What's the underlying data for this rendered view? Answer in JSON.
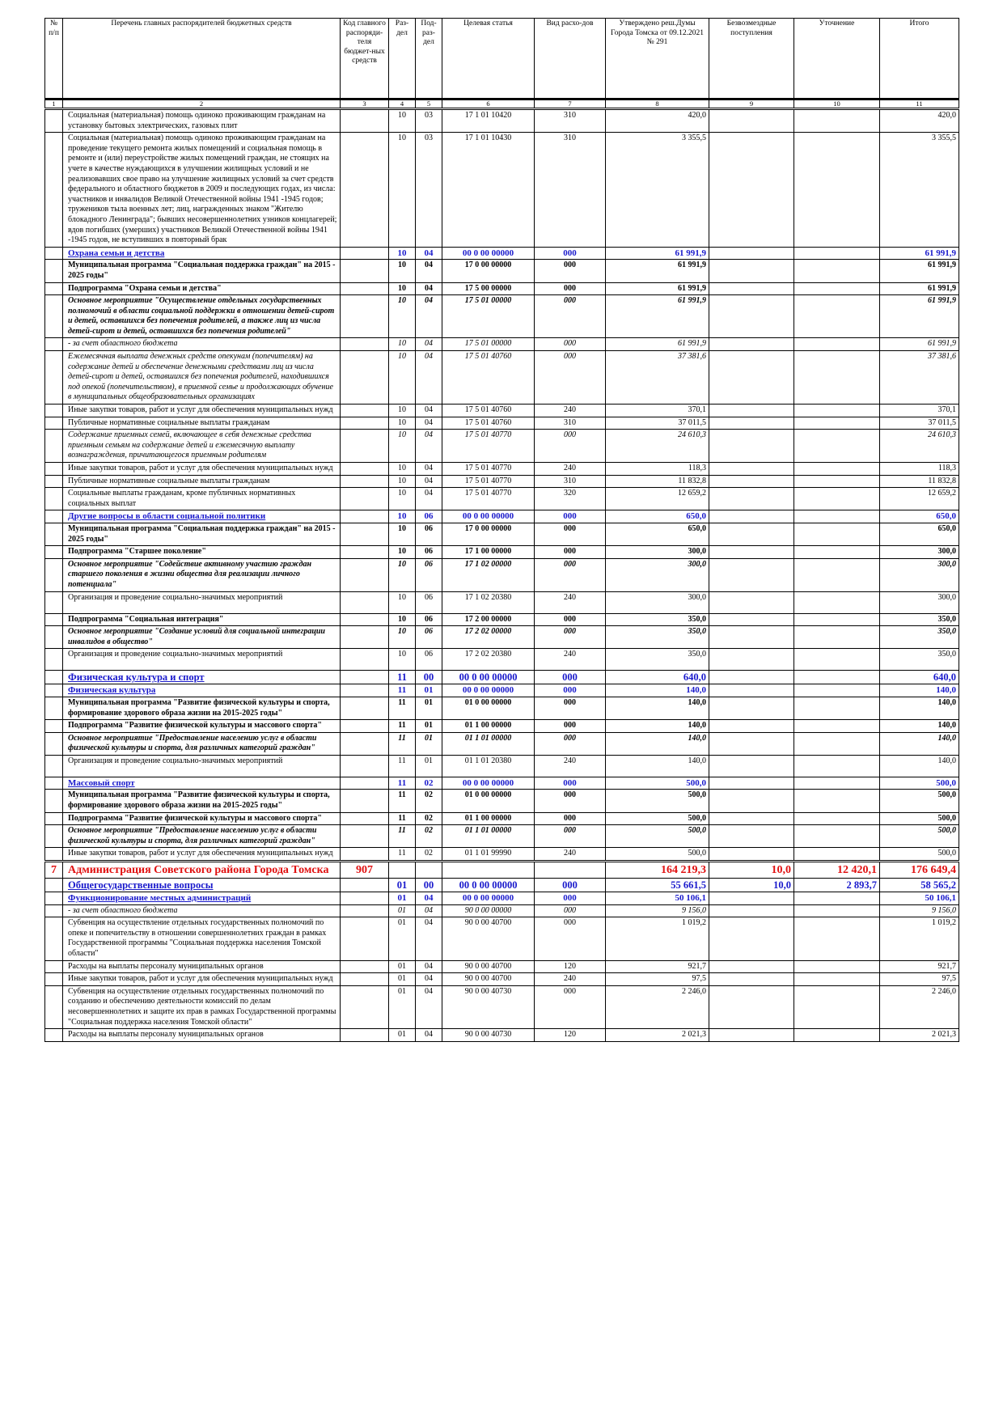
{
  "header": {
    "columns": [
      "№ п/п",
      "Перечень главных распорядителей бюджетных средств",
      "Код главного распоряди-теля бюджет-ных средств",
      "Раз-дел",
      "Под-раз-дел",
      "Целевая статья",
      "Вид расхо-дов",
      "Утверждено реш.Думы Города Томска от 09.12.2021 № 291",
      "Безвозмездные поступления",
      "Уточнение",
      "Итого"
    ],
    "numbers": [
      "1",
      "2",
      "3",
      "4",
      "5",
      "6",
      "7",
      "8",
      "9",
      "10",
      "11"
    ]
  },
  "rows": [
    {
      "style": "normal",
      "cells": [
        null,
        "Социальная (материальная) помощь одиноко проживающим гражданам на установку бытовых электрических, газовых плит",
        null,
        "10",
        "03",
        "17 1 01 10420",
        "310",
        "420,0",
        null,
        null,
        "420,0"
      ]
    },
    {
      "style": "normal",
      "cells": [
        null,
        "Социальная (материальная) помощь одиноко проживающим гражданам на проведение текущего ремонта жилых помещений и социальная помощь в ремонте и (или) переустройстве жилых помещений граждан, не стоящих на учете в качестве нуждающихся в улучшении жилищных условий и не реализовавших свое право на улучшение жилищных условий за счет средств федерального и областного бюджетов в 2009 и последующих годах, из числа: участников и инвалидов Великой Отечественной войны 1941 -1945 годов; тружеников тыла военных лет; лиц, награжденных знаком \"Жителю блокадного Ленинграда\"; бывших несовершеннолетних узников концлагерей; вдов погибших (умерших) участников Великой Отечественной войны 1941 -1945 годов, не вступивших в повторный брак",
        null,
        "10",
        "03",
        "17 1 01 10430",
        "310",
        "3 355,5",
        null,
        null,
        "3 355,5"
      ]
    },
    {
      "style": "section",
      "cells": [
        null,
        "Охрана семьи и детства",
        null,
        "10",
        "04",
        "00 0 00 00000",
        "000",
        "61 991,9",
        null,
        null,
        "61 991,9"
      ]
    },
    {
      "style": "bold",
      "cells": [
        null,
        "Муниципальная программа \"Социальная поддержка граждан\" на 2015 - 2025 годы\"",
        null,
        "10",
        "04",
        "17 0 00 00000",
        "000",
        "61 991,9",
        null,
        null,
        "61 991,9"
      ]
    },
    {
      "style": "bold",
      "cells": [
        null,
        "Подпрограмма \"Охрана семьи и детства\"",
        null,
        "10",
        "04",
        "17 5 00 00000",
        "000",
        "61 991,9",
        null,
        null,
        "61 991,9"
      ]
    },
    {
      "style": "bold-italic",
      "cells": [
        null,
        "Основное мероприятие \"Осуществление отдельных государственных полномочий в области социальной поддержки в отношении детей-сирот и детей, оставшихся без попечения родителей, а также лиц из числа детей-сирот и детей, оставшихся без попечения родителей\"",
        null,
        "10",
        "04",
        "17 5 01 00000",
        "000",
        "61 991,9",
        null,
        null,
        "61 991,9"
      ]
    },
    {
      "style": "italic",
      "cells": [
        null,
        "- за счет областного бюджета",
        null,
        "10",
        "04",
        "17 5 01 00000",
        "000",
        "61 991,9",
        null,
        null,
        "61 991,9"
      ]
    },
    {
      "style": "italic",
      "cells": [
        null,
        "Ежемесячная выплата денежных средств опекунам (попечителям) на содержание детей и обеспечение денежными средствами лиц из числа детей-сирот и детей, оставшихся без попечения родителей, находившихся под опекой (попечительством), в приемной семье и продолжающих обучение в муниципальных общеобразовательных организациях",
        null,
        "10",
        "04",
        "17 5 01 40760",
        "000",
        "37 381,6",
        null,
        null,
        "37 381,6"
      ]
    },
    {
      "style": "normal",
      "cells": [
        null,
        "Иные закупки товаров, работ и услуг для обеспечения муниципальных нужд",
        null,
        "10",
        "04",
        "17 5 01 40760",
        "240",
        "370,1",
        null,
        null,
        "370,1"
      ]
    },
    {
      "style": "normal",
      "cells": [
        null,
        "Публичные нормативные социальные выплаты гражданам",
        null,
        "10",
        "04",
        "17 5 01 40760",
        "310",
        "37 011,5",
        null,
        null,
        "37 011,5"
      ]
    },
    {
      "style": "italic",
      "cells": [
        null,
        "Содержание приемных семей, включающее в себя денежные средства приемным семьям на содержание детей и ежемесячную выплату вознаграждения, причитающегося приемным родителям",
        null,
        "10",
        "04",
        "17 5 01 40770",
        "000",
        "24 610,3",
        null,
        null,
        "24 610,3"
      ]
    },
    {
      "style": "normal",
      "cells": [
        null,
        "Иные закупки товаров, работ и услуг для обеспечения муниципальных нужд",
        null,
        "10",
        "04",
        "17 5 01 40770",
        "240",
        "118,3",
        null,
        null,
        "118,3"
      ]
    },
    {
      "style": "normal",
      "cells": [
        null,
        "Публичные нормативные социальные выплаты гражданам",
        null,
        "10",
        "04",
        "17 5 01 40770",
        "310",
        "11 832,8",
        null,
        null,
        "11 832,8"
      ]
    },
    {
      "style": "normal",
      "cells": [
        null,
        "Социальные выплаты гражданам, кроме публичных нормативных социальных выплат",
        null,
        "10",
        "04",
        "17 5 01 40770",
        "320",
        "12 659,2",
        null,
        null,
        "12 659,2"
      ]
    },
    {
      "style": "section",
      "cells": [
        null,
        "Другие вопросы в области социальной политики",
        null,
        "10",
        "06",
        "00 0 00 00000",
        "000",
        "650,0",
        null,
        null,
        "650,0"
      ]
    },
    {
      "style": "bold",
      "cells": [
        null,
        "Муниципальная программа \"Социальная поддержка граждан\" на 2015 - 2025 годы\"",
        null,
        "10",
        "06",
        "17 0 00 00000",
        "000",
        "650,0",
        null,
        null,
        "650,0"
      ]
    },
    {
      "style": "bold",
      "cells": [
        null,
        "Подпрограмма \"Старшее поколение\"",
        null,
        "10",
        "06",
        "17 1 00 00000",
        "000",
        "300,0",
        null,
        null,
        "300,0"
      ]
    },
    {
      "style": "bold-italic",
      "cells": [
        null,
        "Основное мероприятие \"Содействие активному участию граждан старшего поколения в жизни общества для реализации личного потенциала\"",
        null,
        "10",
        "06",
        "17 1 02 00000",
        "000",
        "300,0",
        null,
        null,
        "300,0"
      ]
    },
    {
      "style": "normal",
      "cells": [
        null,
        "Организация и проведение социально-значимых мероприятий",
        null,
        "10",
        "06",
        "17 1 02 20380",
        "240",
        "300,0",
        null,
        null,
        "300,0"
      ]
    },
    {
      "style": "bold",
      "cells": [
        null,
        "Подпрограмма \"Социальная интеграция\"",
        null,
        "10",
        "06",
        "17 2 00 00000",
        "000",
        "350,0",
        null,
        null,
        "350,0"
      ]
    },
    {
      "style": "bold-italic",
      "cells": [
        null,
        "Основное мероприятие \"Создание условий для социальной интеграции инвалидов в общество\"",
        null,
        "10",
        "06",
        "17 2 02 00000",
        "000",
        "350,0",
        null,
        null,
        "350,0"
      ]
    },
    {
      "style": "normal",
      "cells": [
        null,
        "Организация и проведение социально-значимых мероприятий",
        null,
        "10",
        "06",
        "17 2 02 20380",
        "240",
        "350,0",
        null,
        null,
        "350,0"
      ]
    },
    {
      "style": "section-large",
      "cells": [
        null,
        "Физическая культура и спорт",
        null,
        "11",
        "00",
        "00 0 00 00000",
        "000",
        "640,0",
        null,
        null,
        "640,0"
      ]
    },
    {
      "style": "section",
      "cells": [
        null,
        "Физическая культура",
        null,
        "11",
        "01",
        "00 0 00 00000",
        "000",
        "140,0",
        null,
        null,
        "140,0"
      ]
    },
    {
      "style": "bold",
      "cells": [
        null,
        "Муниципальная программа \"Развитие физической культуры и спорта, формирование здорового образа жизни на 2015-2025 годы\"",
        null,
        "11",
        "01",
        "01 0 00 00000",
        "000",
        "140,0",
        null,
        null,
        "140,0"
      ]
    },
    {
      "style": "bold",
      "cells": [
        null,
        "Подпрограмма \"Развитие физической культуры и массового спорта\"",
        null,
        "11",
        "01",
        "01 1 00 00000",
        "000",
        "140,0",
        null,
        null,
        "140,0"
      ]
    },
    {
      "style": "bold-italic",
      "cells": [
        null,
        "Основное мероприятие \"Предоставление населению услуг в области физической культуры и спорта, для различных категорий граждан\"",
        null,
        "11",
        "01",
        "01 1 01 00000",
        "000",
        "140,0",
        null,
        null,
        "140,0"
      ]
    },
    {
      "style": "normal",
      "cells": [
        null,
        "Организация и проведение социально-значимых мероприятий",
        null,
        "11",
        "01",
        "01 1 01 20380",
        "240",
        "140,0",
        null,
        null,
        "140,0"
      ]
    },
    {
      "style": "section",
      "cells": [
        null,
        "Массовый спорт",
        null,
        "11",
        "02",
        "00 0 00 00000",
        "000",
        "500,0",
        null,
        null,
        "500,0"
      ]
    },
    {
      "style": "bold",
      "cells": [
        null,
        "Муниципальная программа \"Развитие физической культуры и спорта, формирование здорового образа жизни на 2015-2025 годы\"",
        null,
        "11",
        "02",
        "01 0 00 00000",
        "000",
        "500,0",
        null,
        null,
        "500,0"
      ]
    },
    {
      "style": "bold",
      "cells": [
        null,
        "Подпрограмма \"Развитие физической культуры и массового спорта\"",
        null,
        "11",
        "02",
        "01 1 00 00000",
        "000",
        "500,0",
        null,
        null,
        "500,0"
      ]
    },
    {
      "style": "bold-italic",
      "cells": [
        null,
        "Основное мероприятие \"Предоставление населению услуг в области физической культуры и спорта, для различных категорий граждан\"",
        null,
        "11",
        "02",
        "01 1 01 00000",
        "000",
        "500,0",
        null,
        null,
        "500,0"
      ]
    },
    {
      "style": "normal",
      "cells": [
        null,
        "Иные закупки товаров, работ и услуг для обеспечения муниципальных нужд",
        null,
        "11",
        "02",
        "01 1 01 99990",
        "240",
        "500,0",
        null,
        null,
        "500,0"
      ]
    },
    {
      "style": "main",
      "cells": [
        "7",
        "Администрация Советского района Города Томска",
        "907",
        null,
        null,
        null,
        null,
        "164 219,3",
        "10,0",
        "12 420,1",
        "176 649,4"
      ]
    },
    {
      "style": "section-large",
      "cells": [
        null,
        "Общегосударственные вопросы",
        null,
        "01",
        "00",
        "00 0 00 00000",
        "000",
        "55 661,5",
        "10,0",
        "2 893,7",
        "58 565,2"
      ]
    },
    {
      "style": "section",
      "cells": [
        null,
        "Функционирование местных администраций",
        null,
        "01",
        "04",
        "00 0 00 00000",
        "000",
        "50 106,1",
        null,
        null,
        "50 106,1"
      ]
    },
    {
      "style": "italic",
      "cells": [
        null,
        "- за счет областного бюджета",
        null,
        "01",
        "04",
        "90 0 00 00000",
        "000",
        "9 156,0",
        null,
        null,
        "9 156,0"
      ]
    },
    {
      "style": "normal",
      "cells": [
        null,
        "Субвенция на осуществление отдельных государственных полномочий по опеке и попечительству в отношении совершеннолетних граждан в рамках Государственной программы \"Социальная поддержка населения Томской области\"",
        null,
        "01",
        "04",
        "90 0 00 40700",
        "000",
        "1 019,2",
        null,
        null,
        "1 019,2"
      ]
    },
    {
      "style": "normal",
      "cells": [
        null,
        "Расходы на выплаты персоналу муниципальных органов",
        null,
        "01",
        "04",
        "90 0 00 40700",
        "120",
        "921,7",
        null,
        null,
        "921,7"
      ]
    },
    {
      "style": "normal",
      "cells": [
        null,
        "Иные закупки товаров, работ и услуг для обеспечения муниципальных нужд",
        null,
        "01",
        "04",
        "90 0 00 40700",
        "240",
        "97,5",
        null,
        null,
        "97,5"
      ]
    },
    {
      "style": "normal",
      "cells": [
        null,
        "Субвенция на осуществление отдельных государственных полномочий по созданию и обеспечению деятельности комиссий по делам несовершеннолетних и защите их прав в рамках Государственной программы \"Социальная поддержка населения Томской области\"",
        null,
        "01",
        "04",
        "90 0 00 40730",
        "000",
        "2 246,0",
        null,
        null,
        "2 246,0"
      ]
    },
    {
      "style": "normal",
      "cells": [
        null,
        "Расходы на выплаты персоналу муниципальных органов",
        null,
        "01",
        "04",
        "90 0 00 40730",
        "120",
        "2 021,3",
        null,
        null,
        "2 021,3"
      ]
    }
  ]
}
